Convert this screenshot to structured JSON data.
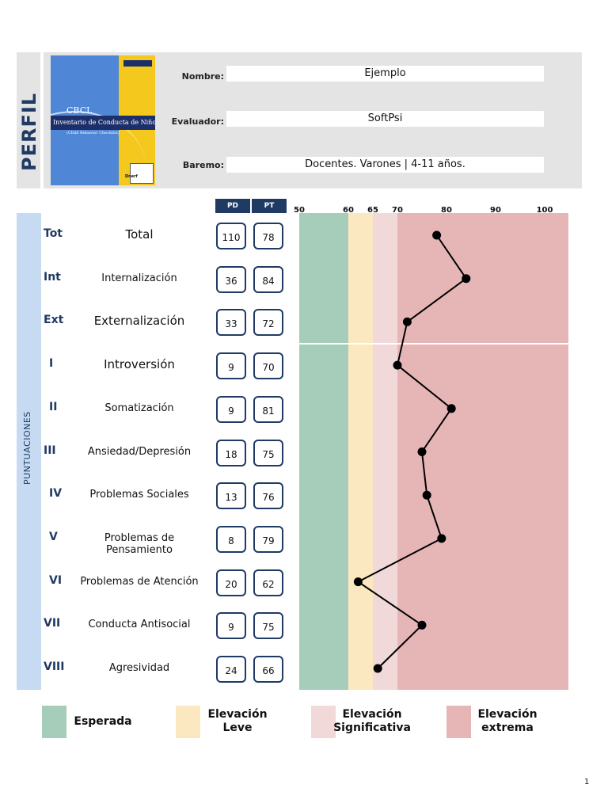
{
  "header": {
    "title": "PERFIL",
    "fields": [
      {
        "label": "Nombre:",
        "value": "Ejemplo"
      },
      {
        "label": "Evaluador:",
        "value": "SoftPsi"
      },
      {
        "label": "Baremo:",
        "value": "Docentes. Varones | 4-11 años."
      }
    ],
    "cover": {
      "acronym": "CBCL",
      "title": "Inventario de Conducta de Niños",
      "subtitle": "(Child Behavior Checklist)",
      "publisher": "Dnerf"
    }
  },
  "side_label": "PUNTUACIONES",
  "columns": {
    "pd": "PD",
    "pt": "PT"
  },
  "chart_data": {
    "type": "line",
    "xlim": [
      50,
      105
    ],
    "x_ticks": [
      50,
      60,
      65,
      70,
      80,
      90,
      100
    ],
    "bands": [
      {
        "from": 50,
        "to": 60,
        "color": "#a5cdb9",
        "label": "Esperada"
      },
      {
        "from": 60,
        "to": 65,
        "color": "#fbe8c0",
        "label": "Elevación Leve"
      },
      {
        "from": 65,
        "to": 70,
        "color": "#f1d9da",
        "label": "Elevación Significativa"
      },
      {
        "from": 70,
        "to": 105,
        "color": "#e6b6b7",
        "label": "Elevación extrema"
      }
    ],
    "rows": [
      {
        "abbr": "Tot",
        "name": "Total",
        "pd": "110",
        "pt": 78
      },
      {
        "abbr": "Int",
        "name": "Internalización",
        "pd": "36",
        "pt": 84
      },
      {
        "abbr": "Ext",
        "name": "Externalización",
        "pd": "33",
        "pt": 72
      },
      {
        "abbr": "I",
        "name": "Introversión",
        "pd": "9",
        "pt": 70
      },
      {
        "abbr": "II",
        "name": "Somatización",
        "pd": "9",
        "pt": 81
      },
      {
        "abbr": "III",
        "name": "Ansiedad/Depresión",
        "pd": "18",
        "pt": 75
      },
      {
        "abbr": "IV",
        "name": "Problemas Sociales",
        "pd": "13",
        "pt": 76
      },
      {
        "abbr": "V",
        "name": "Problemas de Pensamiento",
        "pd": "8",
        "pt": 79
      },
      {
        "abbr": "VI",
        "name": "Problemas de Atención",
        "pd": "20",
        "pt": 62
      },
      {
        "abbr": "VII",
        "name": "Conducta Antisocial",
        "pd": "9",
        "pt": 75
      },
      {
        "abbr": "VIII",
        "name": "Agresividad",
        "pd": "24",
        "pt": 66
      }
    ]
  },
  "legend": [
    {
      "line1": "Esperada",
      "line2": "",
      "color": "#a5cdb9"
    },
    {
      "line1": "Elevación",
      "line2": "Leve",
      "color": "#fbe8c0"
    },
    {
      "line1": "Elevación",
      "line2": "Significativa",
      "color": "#f1d9da"
    },
    {
      "line1": "Elevación",
      "line2": "extrema",
      "color": "#e6b6b7"
    }
  ],
  "page_number": "1"
}
